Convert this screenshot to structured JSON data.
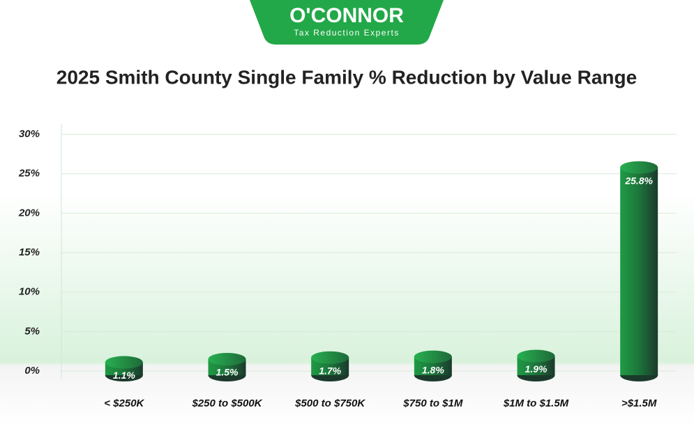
{
  "logo": {
    "name": "O'CONNOR",
    "tagline": "Tax Reduction Experts"
  },
  "chart_data": {
    "type": "bar",
    "title": "2025 Smith County Single Family % Reduction by Value Range",
    "categories": [
      "< $250K",
      "$250 to $500K",
      "$500 to $750K",
      "$750 to $1M",
      "$1M to $1.5M",
      ">$1.5M"
    ],
    "values": [
      1.1,
      1.5,
      1.7,
      1.8,
      1.9,
      25.8
    ],
    "value_labels": [
      "1.1%",
      "1.5%",
      "1.7%",
      "1.8%",
      "1.9%",
      "25.8%"
    ],
    "color": "#1f9a45",
    "ylim": [
      0,
      30
    ],
    "yticks": [
      {
        "value": 0,
        "label": "0%"
      },
      {
        "value": 5,
        "label": "5%"
      },
      {
        "value": 10,
        "label": "10%"
      },
      {
        "value": 15,
        "label": "15%"
      },
      {
        "value": 20,
        "label": "20%"
      },
      {
        "value": 25,
        "label": "25%"
      },
      {
        "value": 30,
        "label": "30%"
      }
    ],
    "grid": true
  }
}
